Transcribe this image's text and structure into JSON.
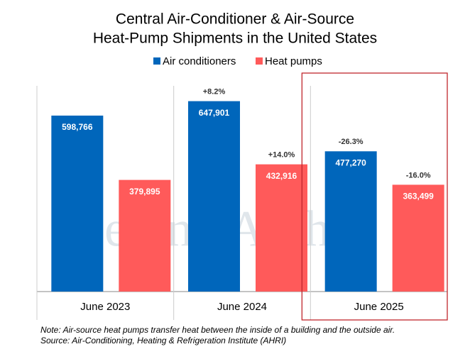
{
  "chart_data": {
    "type": "bar",
    "title": [
      "Central Air-Conditioner & Air-Source",
      "Heat-Pump Shipments in the United States"
    ],
    "categories": [
      "June 2023",
      "June 2024",
      "June 2025"
    ],
    "series": [
      {
        "name": "Air conditioners",
        "color": "#0066bb",
        "values": [
          598766,
          647901,
          477270
        ],
        "value_labels": [
          "598,766",
          "647,901",
          "477,270"
        ],
        "change_labels": [
          null,
          "+8.2%",
          "-26.3%"
        ]
      },
      {
        "name": "Heat pumps",
        "color": "#ff5a5a",
        "values": [
          379895,
          432916,
          363499
        ],
        "value_labels": [
          "379,895",
          "432,916",
          "363,499"
        ],
        "change_labels": [
          null,
          "+14.0%",
          "-16.0%"
        ]
      }
    ],
    "ylim": [
      0,
      700000
    ],
    "highlight_index": 2,
    "highlight_color": "#c0262d",
    "watermark": "Seeking Alpha",
    "watermark_symbol": "α",
    "note": "Note: Air-source heat pumps transfer heat between the inside of a building and the outside air.",
    "source": "Source: Air-Conditioning,  Heating & Refrigeration  Institute (AHRI)"
  }
}
